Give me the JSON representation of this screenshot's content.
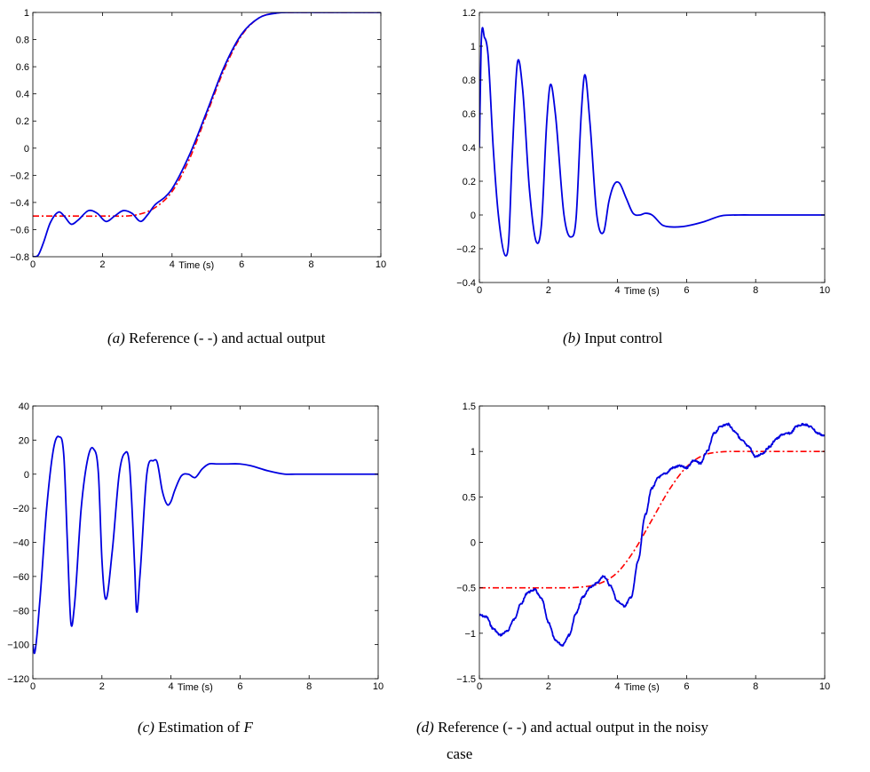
{
  "chart_data": [
    {
      "id": "a",
      "type": "line",
      "xlabel": "Time (s)",
      "xlim": [
        0,
        10
      ],
      "ylim": [
        -0.8,
        1
      ],
      "xticks": [
        "0",
        "2",
        "4",
        "6",
        "8",
        "10"
      ],
      "yticks": [
        "−0.8",
        "−0.6",
        "−0.4",
        "−0.2",
        "0",
        "0.2",
        "0.4",
        "0.6",
        "0.8",
        "1"
      ],
      "caption": {
        "tag": "(a)",
        "text": " Reference (- -) and actual output"
      },
      "series": [
        {
          "style": "dashdot",
          "color": "#ff0000",
          "x": [
            0,
            1,
            2,
            3,
            3.5,
            4,
            4.5,
            5,
            5.5,
            6,
            6.5,
            7,
            7.5,
            8,
            10
          ],
          "y": [
            -0.5,
            -0.5,
            -0.5,
            -0.49,
            -0.44,
            -0.32,
            -0.08,
            0.25,
            0.58,
            0.83,
            0.96,
            0.995,
            1,
            1,
            1
          ]
        },
        {
          "style": "solid",
          "color": "#0000e0",
          "x": [
            0,
            0.15,
            0.3,
            0.5,
            0.75,
            0.9,
            1.1,
            1.3,
            1.6,
            1.85,
            2.1,
            2.35,
            2.6,
            2.85,
            3.1,
            3.3,
            3.5,
            3.8,
            4,
            4.5,
            5,
            5.5,
            6,
            6.5,
            7,
            7.5,
            8,
            10
          ],
          "y": [
            -0.8,
            -0.79,
            -0.7,
            -0.55,
            -0.47,
            -0.5,
            -0.56,
            -0.53,
            -0.46,
            -0.48,
            -0.54,
            -0.5,
            -0.46,
            -0.48,
            -0.54,
            -0.49,
            -0.42,
            -0.36,
            -0.3,
            -0.05,
            0.27,
            0.6,
            0.84,
            0.96,
            0.995,
            1,
            1,
            1
          ]
        }
      ]
    },
    {
      "id": "b",
      "type": "line",
      "xlabel": "Time (s)",
      "xlim": [
        0,
        10
      ],
      "ylim": [
        -0.4,
        1.2
      ],
      "xticks": [
        "0",
        "2",
        "4",
        "6",
        "8",
        "10"
      ],
      "yticks": [
        "−0.4",
        "−0.2",
        "0",
        "0.2",
        "0.4",
        "0.6",
        "0.8",
        "1",
        "1.2"
      ],
      "caption": {
        "tag": "(b)",
        "text": " Input control"
      },
      "series": [
        {
          "style": "solid",
          "color": "#0000e0",
          "x": [
            0,
            0.05,
            0.15,
            0.25,
            0.4,
            0.55,
            0.75,
            0.85,
            0.95,
            1.1,
            1.25,
            1.45,
            1.65,
            1.8,
            1.95,
            2.05,
            2.2,
            2.45,
            2.65,
            2.8,
            2.95,
            3.05,
            3.2,
            3.4,
            3.6,
            3.75,
            3.9,
            4.05,
            4.25,
            4.45,
            4.65,
            4.8,
            5,
            5.3,
            5.5,
            5.8,
            6,
            6.5,
            7,
            7.5,
            8,
            10
          ],
          "y": [
            0.4,
            1.0,
            1.05,
            0.95,
            0.4,
            0.0,
            -0.24,
            -0.15,
            0.35,
            0.9,
            0.75,
            0.15,
            -0.16,
            -0.05,
            0.55,
            0.77,
            0.6,
            0.0,
            -0.13,
            -0.02,
            0.6,
            0.83,
            0.55,
            0.0,
            -0.1,
            0.08,
            0.18,
            0.19,
            0.1,
            0.01,
            0.0,
            0.01,
            0.0,
            -0.06,
            -0.07,
            -0.07,
            -0.065,
            -0.04,
            -0.005,
            0,
            0,
            0
          ]
        }
      ]
    },
    {
      "id": "c",
      "type": "line",
      "xlabel": "Time (s)",
      "xlim": [
        0,
        10
      ],
      "ylim": [
        -120,
        40
      ],
      "xticks": [
        "0",
        "2",
        "4",
        "6",
        "8",
        "10"
      ],
      "yticks": [
        "−120",
        "−100",
        "−80",
        "−60",
        "−40",
        "−20",
        "0",
        "20",
        "40"
      ],
      "caption": {
        "tag": "(c)",
        "text": " Estimation of ",
        "math": "F"
      },
      "series": [
        {
          "style": "solid",
          "color": "#0000e0",
          "x": [
            0,
            0.05,
            0.2,
            0.4,
            0.6,
            0.75,
            0.9,
            1.0,
            1.1,
            1.2,
            1.4,
            1.6,
            1.75,
            1.9,
            2.0,
            2.1,
            2.3,
            2.5,
            2.65,
            2.8,
            2.95,
            3.0,
            3.1,
            3.3,
            3.5,
            3.6,
            3.75,
            3.9,
            4.0,
            4.1,
            4.3,
            4.5,
            4.7,
            4.9,
            5.1,
            5.3,
            5.6,
            6.0,
            6.3,
            6.8,
            7.3,
            7.6,
            10
          ],
          "y": [
            -100,
            -105,
            -75,
            -20,
            15,
            22,
            10,
            -40,
            -87,
            -78,
            -20,
            10,
            15,
            0,
            -50,
            -73,
            -45,
            0,
            12,
            5,
            -55,
            -80,
            -60,
            0,
            8,
            7,
            -10,
            -18,
            -16,
            -10,
            -1,
            0,
            -2,
            3,
            6,
            6,
            6,
            6,
            5,
            2,
            0,
            0,
            0
          ]
        }
      ]
    },
    {
      "id": "d",
      "type": "line",
      "xlabel": "Time (s)",
      "xlim": [
        0,
        10
      ],
      "ylim": [
        -1.5,
        1.5
      ],
      "xticks": [
        "0",
        "2",
        "4",
        "6",
        "8",
        "10"
      ],
      "yticks": [
        "−1.5",
        "−1",
        "−0.5",
        "0",
        "0.5",
        "1",
        "1.5"
      ],
      "caption": {
        "tag": "(d)",
        "text": " Reference (- -) and actual output in the noisy",
        "text2": "case"
      },
      "series": [
        {
          "style": "dashdot",
          "color": "#ff0000",
          "x": [
            0,
            1,
            2,
            3,
            3.5,
            4,
            4.5,
            5,
            5.5,
            6,
            6.5,
            7,
            7.5,
            8,
            10
          ],
          "y": [
            -0.5,
            -0.5,
            -0.5,
            -0.49,
            -0.45,
            -0.33,
            -0.08,
            0.25,
            0.58,
            0.83,
            0.96,
            0.995,
            1,
            1,
            1
          ]
        },
        {
          "style": "solid",
          "color": "#0000e0",
          "noisy": true,
          "x": [
            0,
            0.2,
            0.4,
            0.6,
            0.8,
            1.0,
            1.2,
            1.4,
            1.6,
            1.8,
            2.0,
            2.2,
            2.4,
            2.6,
            2.8,
            3.0,
            3.2,
            3.4,
            3.6,
            3.8,
            4.0,
            4.2,
            4.4,
            4.6,
            4.8,
            5.0,
            5.2,
            5.4,
            5.6,
            5.8,
            6.0,
            6.2,
            6.4,
            6.6,
            6.8,
            7.0,
            7.2,
            7.4,
            7.6,
            7.8,
            8.0,
            8.2,
            8.4,
            8.6,
            8.8,
            9.0,
            9.2,
            9.4,
            9.6,
            9.8,
            10
          ],
          "y": [
            -0.8,
            -0.82,
            -0.95,
            -1.02,
            -0.98,
            -0.85,
            -0.68,
            -0.55,
            -0.52,
            -0.62,
            -0.88,
            -1.08,
            -1.13,
            -1.02,
            -0.78,
            -0.6,
            -0.5,
            -0.45,
            -0.37,
            -0.48,
            -0.65,
            -0.7,
            -0.6,
            -0.2,
            0.3,
            0.6,
            0.72,
            0.76,
            0.82,
            0.84,
            0.82,
            0.9,
            0.87,
            1.0,
            1.2,
            1.28,
            1.3,
            1.22,
            1.12,
            1.05,
            0.94,
            0.98,
            1.05,
            1.14,
            1.19,
            1.2,
            1.28,
            1.3,
            1.27,
            1.2,
            1.17
          ]
        }
      ]
    }
  ]
}
